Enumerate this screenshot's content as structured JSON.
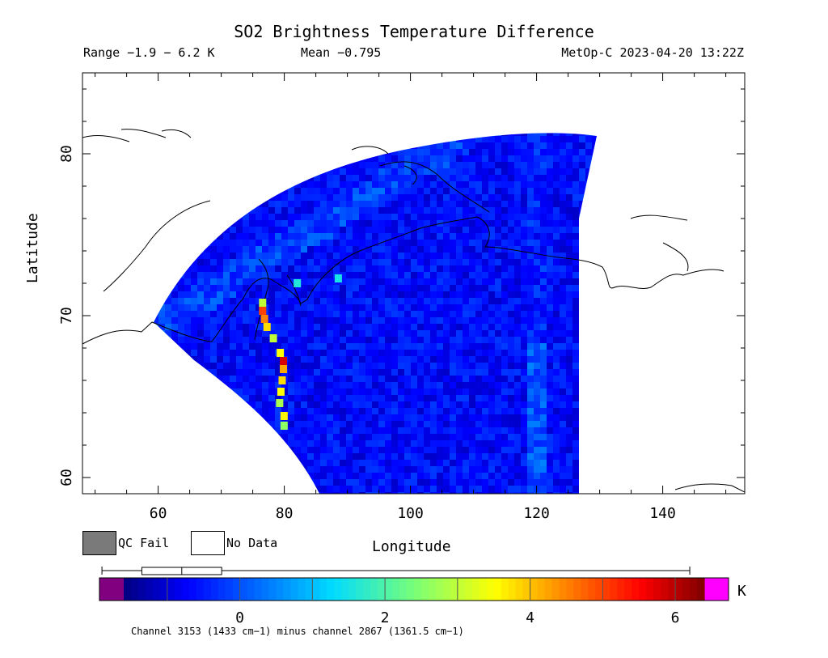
{
  "header": {
    "title": "SO2 Brightness Temperature Difference",
    "range": "Range −1.9 − 6.2 K",
    "mean": "Mean −0.795",
    "satellite_time": "MetOp-C 2023-04-20 13:22Z"
  },
  "chart_data": {
    "type": "heatmap",
    "title": "SO2 Brightness Temperature Difference",
    "xlabel": "Longitude",
    "ylabel": "Latitude",
    "xlim": [
      48,
      153
    ],
    "ylim": [
      59,
      85
    ],
    "xticks": [
      60,
      80,
      100,
      120,
      140
    ],
    "yticks": [
      60,
      70,
      80
    ],
    "colorbar": {
      "unit": "K",
      "ticks": [
        0,
        2,
        4,
        6
      ],
      "min": -1.9,
      "max": 6.2,
      "box_range": [
        -1.9,
        6.2
      ],
      "box_quartiles": [
        -1.35,
        -0.8,
        -0.25
      ]
    },
    "swath": {
      "lon_range": [
        59,
        130
      ],
      "lat_range": [
        59,
        81
      ]
    },
    "plume_points": [
      {
        "lon": 76.5,
        "lat": 70.8,
        "value": 3.0
      },
      {
        "lon": 76.5,
        "lat": 70.3,
        "value": 5.0
      },
      {
        "lon": 76.8,
        "lat": 69.8,
        "value": 4.5
      },
      {
        "lon": 77.2,
        "lat": 69.3,
        "value": 3.8
      },
      {
        "lon": 78.2,
        "lat": 68.6,
        "value": 3.0
      },
      {
        "lon": 79.3,
        "lat": 67.7,
        "value": 3.5
      },
      {
        "lon": 79.8,
        "lat": 67.2,
        "value": 5.8
      },
      {
        "lon": 79.8,
        "lat": 66.7,
        "value": 4.2
      },
      {
        "lon": 79.6,
        "lat": 66.0,
        "value": 3.8
      },
      {
        "lon": 79.4,
        "lat": 65.3,
        "value": 3.5
      },
      {
        "lon": 79.2,
        "lat": 64.6,
        "value": 2.8
      },
      {
        "lon": 79.9,
        "lat": 63.8,
        "value": 3.6
      },
      {
        "lon": 79.9,
        "lat": 63.2,
        "value": 2.6
      },
      {
        "lon": 82.0,
        "lat": 72.0,
        "value": 1.6
      },
      {
        "lon": 88.5,
        "lat": 72.3,
        "value": 1.5
      }
    ]
  },
  "legend": {
    "qc_fail": "QC Fail",
    "no_data": "No Data",
    "qc_fail_color": "#7a7a7a"
  },
  "footer": {
    "channel": "Channel 3153 (1433 cm−1) minus channel 2867 (1361.5 cm−1)"
  }
}
